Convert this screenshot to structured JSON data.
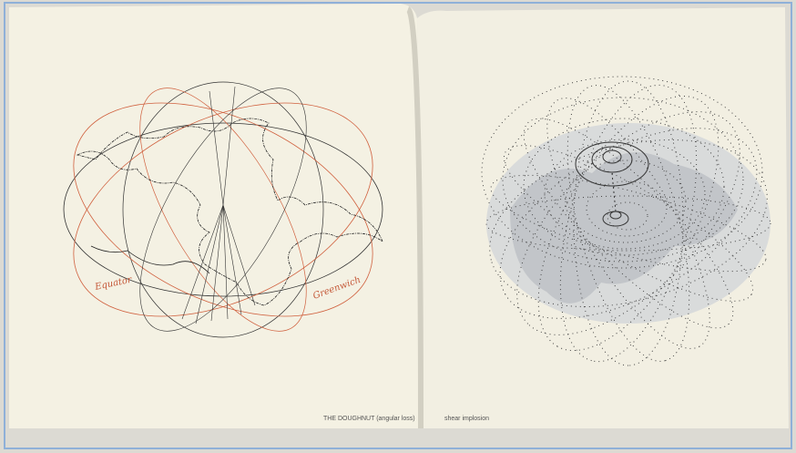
{
  "left_page": {
    "labels": [
      "Equator",
      "Greenwich"
    ],
    "caption": "THE DOUGHNUT (angular loss)"
  },
  "right_page": {
    "caption": "shear implosion"
  }
}
